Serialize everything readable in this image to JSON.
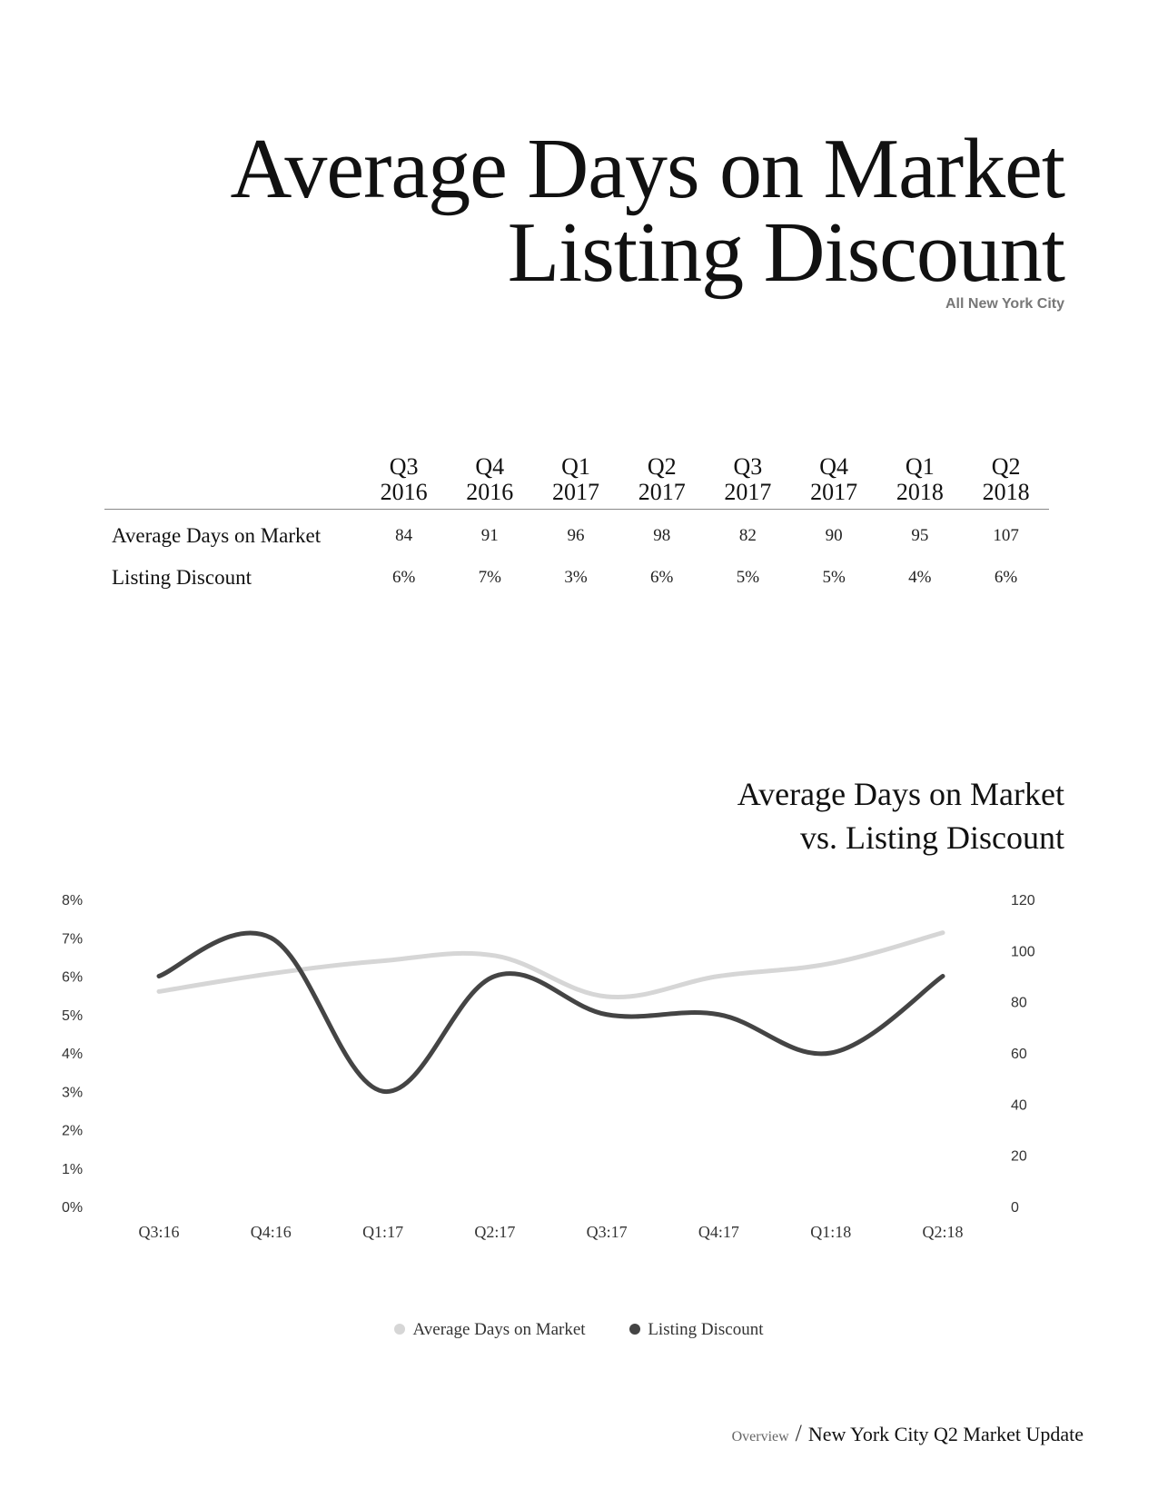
{
  "header": {
    "title_line1": "Average Days on Market",
    "title_line2": "Listing Discount",
    "subtitle": "All New York City"
  },
  "table": {
    "columns": [
      {
        "quarter": "Q3",
        "year": "2016"
      },
      {
        "quarter": "Q4",
        "year": "2016"
      },
      {
        "quarter": "Q1",
        "year": "2017"
      },
      {
        "quarter": "Q2",
        "year": "2017"
      },
      {
        "quarter": "Q3",
        "year": "2017"
      },
      {
        "quarter": "Q4",
        "year": "2017"
      },
      {
        "quarter": "Q1",
        "year": "2018"
      },
      {
        "quarter": "Q2",
        "year": "2018"
      }
    ],
    "rows": [
      {
        "label": "Average Days on Market",
        "values": [
          "84",
          "91",
          "96",
          "98",
          "82",
          "90",
          "95",
          "107"
        ]
      },
      {
        "label": "Listing Discount",
        "values": [
          "6%",
          "7%",
          "3%",
          "6%",
          "5%",
          "5%",
          "4%",
          "6%"
        ]
      }
    ]
  },
  "chart_title": {
    "line1": "Average Days on Market",
    "line2": "vs. Listing Discount"
  },
  "chart_data": {
    "type": "line",
    "categories": [
      "Q3:16",
      "Q4:16",
      "Q1:17",
      "Q2:17",
      "Q3:17",
      "Q4:17",
      "Q1:18",
      "Q2:18"
    ],
    "series": [
      {
        "name": "Average Days on Market",
        "axis": "right",
        "color": "#d6d6d6",
        "values": [
          84,
          91,
          96,
          98,
          82,
          90,
          95,
          107
        ]
      },
      {
        "name": "Listing Discount",
        "axis": "left",
        "color": "#444444",
        "values": [
          6,
          7,
          3,
          6,
          5,
          5,
          4,
          6
        ]
      }
    ],
    "y_left": {
      "range": [
        0,
        8
      ],
      "ticks": [
        "0%",
        "1%",
        "2%",
        "3%",
        "4%",
        "5%",
        "6%",
        "7%",
        "8%"
      ]
    },
    "y_right": {
      "range": [
        0,
        120
      ],
      "ticks": [
        "0",
        "20",
        "40",
        "60",
        "80",
        "100",
        "120"
      ]
    },
    "grid": false,
    "legend": "bottom-center",
    "smooth": true
  },
  "legend": {
    "items": [
      {
        "label": "Average Days on Market",
        "color": "#d6d6d6"
      },
      {
        "label": "Listing Discount",
        "color": "#444444"
      }
    ]
  },
  "footer": {
    "section": "Overview",
    "separator": "/",
    "document": "New York City Q2 Market Update"
  }
}
